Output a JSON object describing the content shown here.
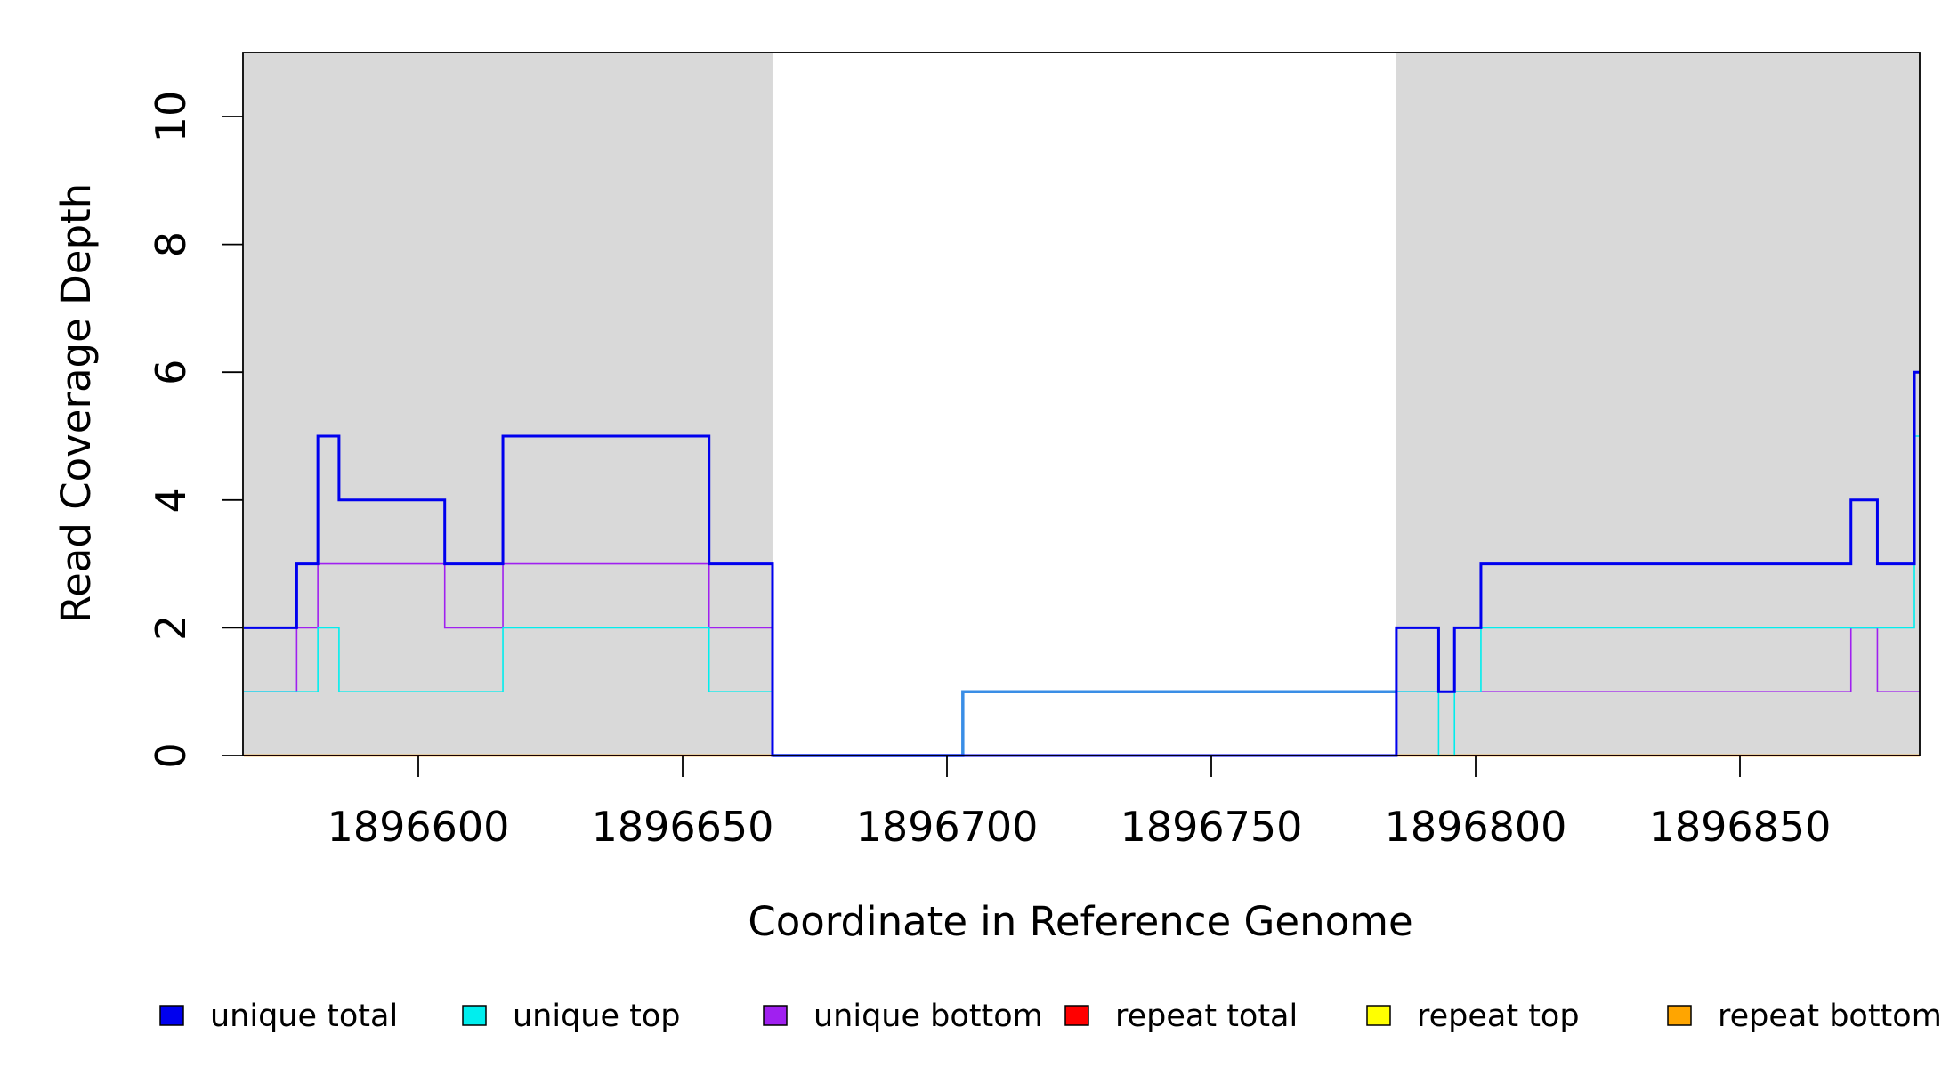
{
  "chart_data": {
    "type": "line",
    "xlabel": "Coordinate in Reference Genome",
    "ylabel": "Read Coverage Depth",
    "xlim": [
      1896567,
      1896884
    ],
    "ylim": [
      0,
      11
    ],
    "x_ticks": [
      1896600,
      1896650,
      1896700,
      1896750,
      1896800,
      1896850
    ],
    "x_tick_labels": [
      "1896600",
      "1896650",
      "1896700",
      "1896750",
      "1896800",
      "1896850"
    ],
    "y_ticks": [
      0,
      2,
      4,
      6,
      8,
      10
    ],
    "y_tick_labels": [
      "0",
      "2",
      "4",
      "6",
      "8",
      "10"
    ],
    "shaded_regions": [
      {
        "x0": 1896567,
        "x1": 1896667,
        "color": "#d9d9d9"
      },
      {
        "x0": 1896785,
        "x1": 1896884,
        "color": "#d9d9d9"
      }
    ],
    "legend_position": "bottom",
    "series": [
      {
        "name": "unique total",
        "color": "#0000ee",
        "x": [
          1896567,
          1896577,
          1896581,
          1896585,
          1896605,
          1896616,
          1896655,
          1896667,
          1896785,
          1896793,
          1896796,
          1896801,
          1896871,
          1896876,
          1896883,
          1896884
        ],
        "y": [
          2,
          3,
          5,
          4,
          3,
          5,
          3,
          0,
          2,
          1,
          2,
          3,
          4,
          3,
          6,
          6
        ]
      },
      {
        "name": "unique top",
        "color": "#00eeee",
        "x": [
          1896567,
          1896581,
          1896585,
          1896616,
          1896655,
          1896667,
          1896785,
          1896793,
          1896796,
          1896801,
          1896883,
          1896884
        ],
        "y": [
          1,
          2,
          1,
          2,
          1,
          0,
          1,
          0,
          1,
          2,
          5,
          5
        ]
      },
      {
        "name": "unique bottom",
        "color": "#a020f0",
        "x": [
          1896567,
          1896577,
          1896581,
          1896605,
          1896616,
          1896655,
          1896667,
          1896785,
          1896871,
          1896876,
          1896884
        ],
        "y": [
          1,
          2,
          3,
          2,
          3,
          2,
          0,
          1,
          2,
          1,
          1
        ]
      },
      {
        "name": "repeat total",
        "color": "#ff0000",
        "x": [
          1896567,
          1896884
        ],
        "y": [
          0,
          0
        ]
      },
      {
        "name": "repeat top",
        "color": "#ffff00",
        "x": [
          1896567,
          1896884
        ],
        "y": [
          0,
          0
        ]
      },
      {
        "name": "repeat bottom",
        "color": "#ffa500",
        "x": [
          1896567,
          1896884
        ],
        "y": [
          0,
          0
        ]
      }
    ],
    "gap_series": {
      "color": "#3a8ee6",
      "x": [
        1896667,
        1896703,
        1896785
      ],
      "y": [
        0,
        1,
        1
      ]
    }
  }
}
